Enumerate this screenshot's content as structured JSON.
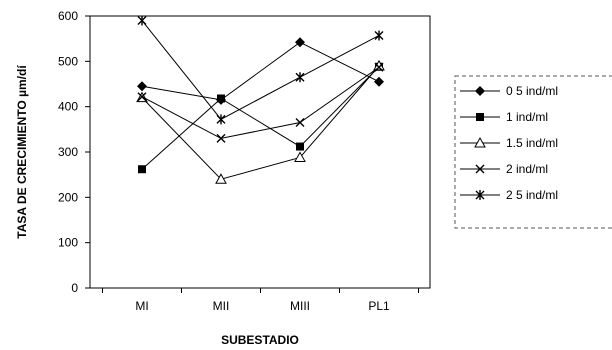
{
  "chart_data": {
    "type": "line",
    "title": "",
    "xlabel": "SUBESTADIO",
    "ylabel": "TASA DE CRECIMIENTO µm/dí",
    "categories": [
      "MI",
      "MII",
      "MIII",
      "PL1"
    ],
    "ylim": [
      0,
      600
    ],
    "yticks": [
      0,
      100,
      200,
      300,
      400,
      500,
      600
    ],
    "grid": false,
    "legend_position": "right",
    "series": [
      {
        "name": "0 5 ind/ml",
        "marker": "diamond",
        "values": [
          445,
          415,
          542,
          455
        ]
      },
      {
        "name": "1 ind/ml",
        "marker": "square",
        "values": [
          262,
          418,
          312,
          488
        ]
      },
      {
        "name": "1.5 ind/ml",
        "marker": "triangle",
        "values": [
          420,
          240,
          288,
          490
        ]
      },
      {
        "name": "2 ind/ml",
        "marker": "x",
        "values": [
          422,
          330,
          365,
          487
        ]
      },
      {
        "name": "2 5 ind/ml",
        "marker": "star",
        "values": [
          590,
          372,
          465,
          557
        ]
      }
    ]
  }
}
